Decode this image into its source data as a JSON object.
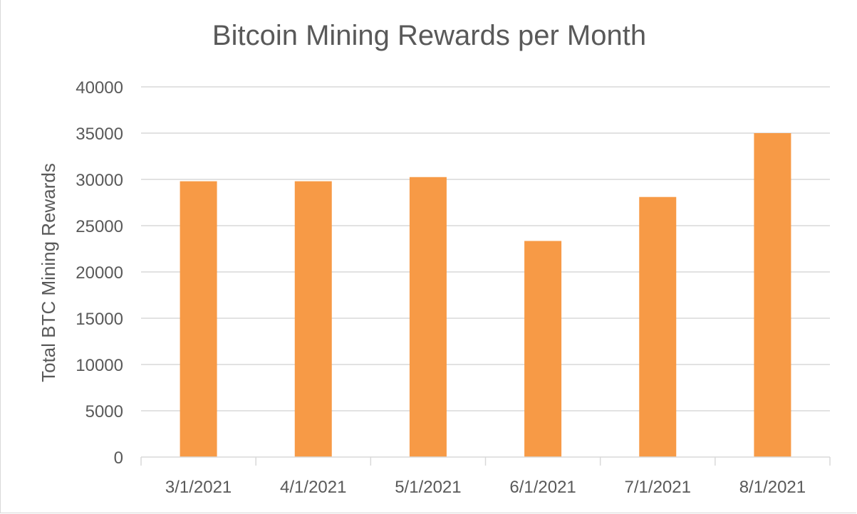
{
  "chart_data": {
    "type": "bar",
    "title": "Bitcoin Mining Rewards per Month",
    "xlabel": "",
    "ylabel": "Total BTC Mining Rewards",
    "categories": [
      "3/1/2021",
      "4/1/2021",
      "5/1/2021",
      "6/1/2021",
      "7/1/2021",
      "8/1/2021"
    ],
    "values": [
      29800,
      29800,
      30250,
      23350,
      28100,
      35000
    ],
    "ylim": [
      0,
      40000
    ],
    "yticks": [
      0,
      5000,
      10000,
      15000,
      20000,
      25000,
      30000,
      35000,
      40000
    ],
    "grid": true,
    "legend": "none",
    "colors": {
      "bar": "#f79a46",
      "grid": "#d9d9d9",
      "text": "#595959"
    }
  }
}
